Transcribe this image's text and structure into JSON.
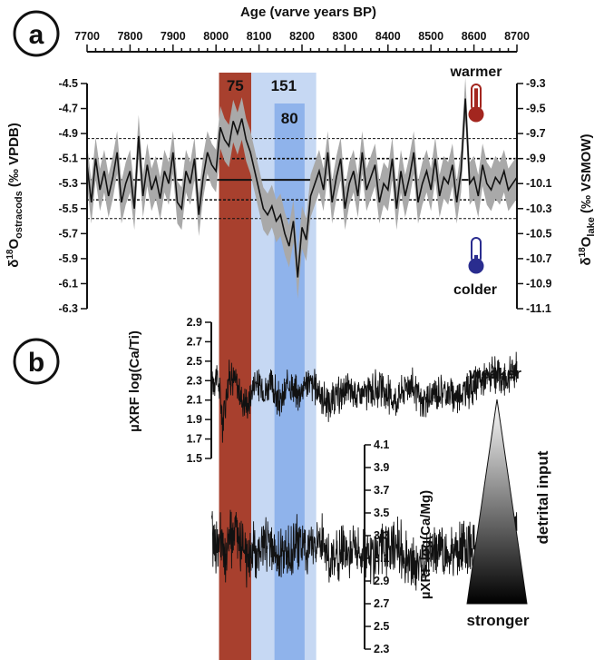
{
  "figure": {
    "panel_a_label": "a",
    "panel_b_label": "b",
    "top_axis_title": "Age (varve years BP)",
    "warmer_label": "warmer",
    "colder_label": "colder",
    "detrital_label": "detrital input",
    "weaker_label": "weaker",
    "stronger_label": "stronger",
    "band_labels": {
      "red": "75",
      "light_blue": "151",
      "dark_blue": "80"
    }
  },
  "colors": {
    "red_band": "#a8402e",
    "light_blue_band": "#c6d8f3",
    "dark_blue_band": "#8fb3eb",
    "warmer": "#a3261f",
    "colder": "#2a2d8f",
    "envelope": "#a9a9a9",
    "line": "#111111"
  },
  "chart_data": [
    {
      "type": "line",
      "panel": "a",
      "x_axis": {
        "label": "Age (varve years BP)",
        "range": [
          7700,
          8700
        ],
        "ticks": [
          "7700",
          "7800",
          "7900",
          "8000",
          "8100",
          "8200",
          "8300",
          "8400",
          "8500",
          "8600",
          "8700"
        ]
      },
      "y_left": {
        "label_main": "δ",
        "label_sup": "18",
        "label_rest": "O",
        "label_sub": "ostracods",
        "label_unit": " (‰ VPDB)",
        "range": [
          -6.3,
          -4.5
        ],
        "ticks": [
          "-4.5",
          "-4.7",
          "-4.9",
          "-5.1",
          "-5.3",
          "-5.5",
          "-5.7",
          "-5.9",
          "-6.1",
          "-6.3"
        ]
      },
      "y_right": {
        "label_main": "δ",
        "label_sup": "18",
        "label_rest": "O",
        "label_sub": "lake",
        "label_unit": " (‰ VSMOW)",
        "range": [
          -11.1,
          -9.3
        ],
        "ticks": [
          "-9.3",
          "-9.5",
          "-9.7",
          "-9.9",
          "-10.1",
          "-10.3",
          "-10.5",
          "-10.7",
          "-10.9",
          "-11.1"
        ]
      },
      "reference_lines": {
        "mean": -5.27,
        "inner_sd": [
          -5.1,
          -5.43
        ],
        "outer_sd": [
          -4.94,
          -5.58
        ]
      },
      "bands": [
        {
          "label": "75",
          "range": [
            8007,
            8082
          ]
        },
        {
          "label": "151",
          "range": [
            8082,
            8233
          ]
        },
        {
          "label": "80",
          "range": [
            8136,
            8206
          ]
        }
      ],
      "series": [
        {
          "x": [
            7700,
            7710,
            7720,
            7730,
            7740,
            7750,
            7760,
            7770,
            7780,
            7790,
            7800,
            7810,
            7820,
            7830,
            7840,
            7850,
            7860,
            7870,
            7880,
            7890,
            7900,
            7910,
            7920,
            7930,
            7940,
            7950,
            7960,
            7970,
            7980,
            7990,
            8000,
            8010,
            8020,
            8030,
            8040,
            8050,
            8060,
            8070,
            8080,
            8090,
            8100,
            8110,
            8120,
            8130,
            8140,
            8150,
            8160,
            8170,
            8180,
            8190,
            8200,
            8210,
            8220,
            8230,
            8240,
            8250,
            8260,
            8270,
            8280,
            8290,
            8300,
            8310,
            8320,
            8330,
            8340,
            8350,
            8360,
            8370,
            8380,
            8390,
            8400,
            8410,
            8420,
            8430,
            8440,
            8450,
            8460,
            8470,
            8480,
            8490,
            8500,
            8510,
            8520,
            8530,
            8540,
            8550,
            8560,
            8570,
            8580,
            8590,
            8600,
            8610,
            8620,
            8630,
            8640,
            8650,
            8660,
            8670,
            8680,
            8690,
            8700
          ],
          "values": [
            -5.15,
            -5.45,
            -5.1,
            -5.35,
            -5.2,
            -5.4,
            -5.25,
            -5.05,
            -5.45,
            -5.3,
            -5.2,
            -5.5,
            -4.92,
            -5.4,
            -5.15,
            -5.35,
            -5.25,
            -5.42,
            -5.2,
            -5.3,
            -5.05,
            -5.45,
            -5.5,
            -5.2,
            -5.3,
            -5.1,
            -5.55,
            -5.25,
            -5.05,
            -5.15,
            -5.2,
            -4.85,
            -4.95,
            -5.0,
            -4.8,
            -4.9,
            -4.78,
            -4.95,
            -5.05,
            -5.2,
            -5.35,
            -5.5,
            -5.55,
            -5.48,
            -5.6,
            -5.55,
            -5.7,
            -5.8,
            -5.6,
            -6.05,
            -5.65,
            -5.75,
            -5.4,
            -5.3,
            -5.2,
            -5.35,
            -5.05,
            -5.45,
            -5.25,
            -5.1,
            -5.5,
            -5.3,
            -5.2,
            -5.4,
            -5.05,
            -5.35,
            -5.25,
            -5.15,
            -5.45,
            -5.3,
            -5.35,
            -5.1,
            -5.5,
            -5.2,
            -5.4,
            -5.25,
            -5.05,
            -5.45,
            -5.3,
            -5.2,
            -5.35,
            -5.1,
            -5.4,
            -5.25,
            -5.3,
            -5.15,
            -5.45,
            -5.2,
            -4.62,
            -5.3,
            -5.25,
            -5.4,
            -5.15,
            -5.3,
            -5.35,
            -5.25,
            -5.3,
            -5.2,
            -5.35,
            -5.3,
            -5.25
          ],
          "uncertainty": 0.17
        }
      ]
    },
    {
      "type": "line",
      "panel": "b",
      "y_axis": {
        "label": "µXRF log(Ca/Ti)",
        "range": [
          1.5,
          2.9
        ],
        "ticks": [
          "2.9",
          "2.7",
          "2.5",
          "2.3",
          "2.1",
          "1.9",
          "1.7",
          "1.5"
        ]
      },
      "x_range": [
        7990,
        8700
      ],
      "series": [
        {
          "x_knots": [
            7990,
            8000,
            8005,
            8010,
            8015,
            8020,
            8030,
            8045,
            8060,
            8075,
            8090,
            8110,
            8130,
            8150,
            8170,
            8190,
            8210,
            8240,
            8260,
            8300,
            8340,
            8380,
            8420,
            8450,
            8480,
            8520,
            8560,
            8600,
            8640,
            8670,
            8700
          ],
          "values": [
            2.3,
            2.35,
            2.28,
            2.15,
            1.85,
            2.05,
            2.35,
            2.3,
            2.12,
            2.05,
            2.3,
            2.2,
            2.25,
            2.05,
            2.28,
            2.15,
            2.3,
            2.2,
            2.05,
            2.2,
            2.15,
            2.22,
            2.1,
            2.3,
            2.05,
            2.2,
            2.15,
            2.25,
            2.35,
            2.3,
            2.45
          ],
          "noise_amplitude": 0.22
        }
      ]
    },
    {
      "type": "line",
      "panel": "b",
      "y_axis": {
        "label": "µXRF log(Ca/Mg)",
        "range": [
          2.3,
          4.1
        ],
        "ticks": [
          "4.1",
          "3.9",
          "3.7",
          "3.5",
          "3.3",
          "3.1",
          "2.9",
          "2.7",
          "2.5",
          "2.3"
        ]
      },
      "x_range": [
        7990,
        8700
      ],
      "series": [
        {
          "x_knots": [
            7990,
            8000,
            8010,
            8020,
            8030,
            8050,
            8070,
            8090,
            8110,
            8130,
            8150,
            8170,
            8190,
            8210,
            8240,
            8270,
            8300,
            8340,
            8380,
            8420,
            8460,
            8500,
            8540,
            8580,
            8620,
            8660,
            8700
          ],
          "values": [
            3.3,
            3.2,
            3.25,
            3.05,
            3.25,
            3.3,
            3.1,
            3.15,
            3.25,
            3.2,
            3.1,
            3.15,
            3.25,
            3.15,
            3.3,
            3.05,
            3.2,
            3.15,
            3.1,
            3.25,
            3.0,
            3.2,
            3.1,
            3.25,
            3.15,
            3.25,
            3.3
          ],
          "noise_amplitude": 0.3
        }
      ]
    }
  ]
}
